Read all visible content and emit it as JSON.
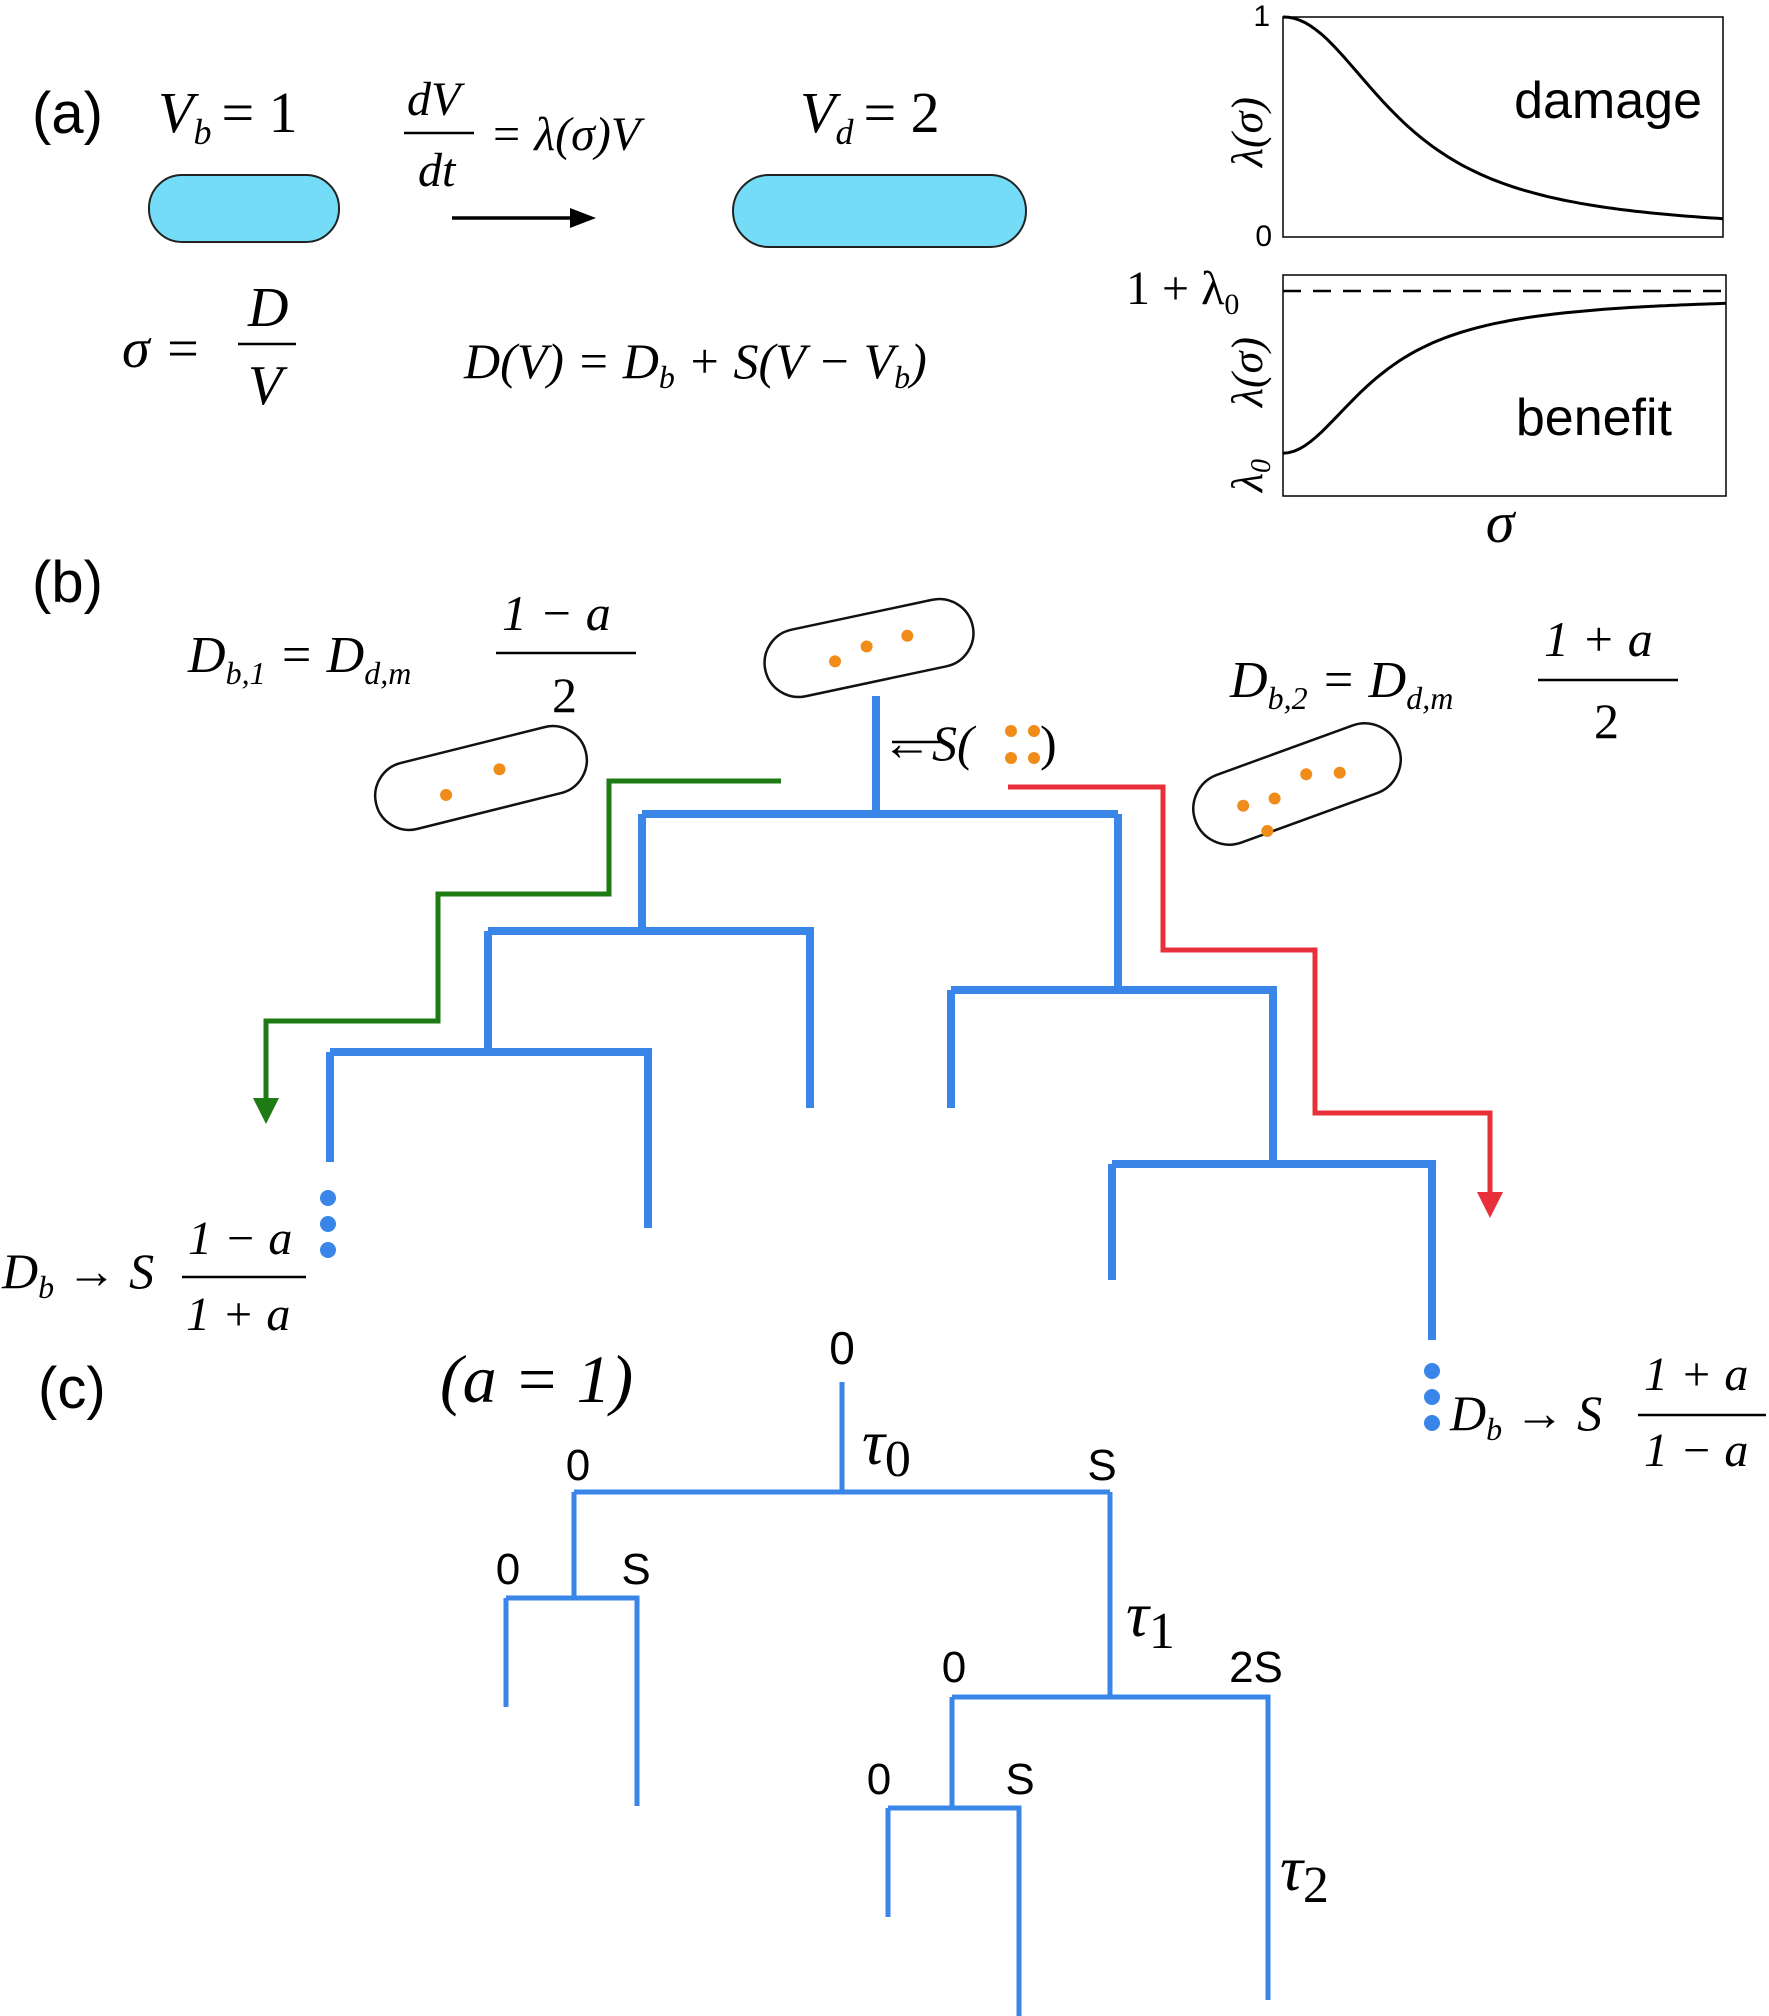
{
  "colors": {
    "tree": "#3a86e8",
    "green": "#1e7a12",
    "red": "#e8303a",
    "cell_fill": "#74dcf7",
    "dot": "#f08c1a"
  },
  "panel_a": {
    "label": "(a)",
    "vb_var": "V",
    "vb_sub": "b",
    "vb_rhs": "= 1",
    "vd_var": "V",
    "vd_sub": "d",
    "vd_rhs": "= 2",
    "rate_num": "dV",
    "rate_den": "dt",
    "rate_rhs": "= λ(σ)V",
    "sigma_lhs": "σ =",
    "sigma_num": "D",
    "sigma_den": "V",
    "dv_eq": "D(V) = D",
    "dv_sub": "b",
    "dv_rest": " + S(V − V",
    "dv_end": ")"
  },
  "damage_plot": {
    "ylabel": "λ(σ)",
    "ytick_top": "1",
    "ytick_bottom": "0",
    "label": "damage",
    "chart_data": {
      "type": "line",
      "title": "damage",
      "ylabel": "λ(σ)",
      "xlabel": "",
      "yticks": [
        "1",
        "0"
      ],
      "ylim": [
        0,
        1
      ],
      "curve": "decreasing sigmoid from 1 toward 0"
    }
  },
  "benefit_plot": {
    "ylabel": "λ(σ)",
    "ytick_top_main": "1 + λ",
    "ytick_top_sub": "0",
    "ytick_bottom_main": "λ",
    "ytick_bottom_sub": "0",
    "label": "benefit",
    "xlabel": "σ",
    "chart_data": {
      "type": "line",
      "title": "benefit",
      "ylabel": "λ(σ)",
      "xlabel": "σ",
      "yticks": [
        "λ0",
        "1 + λ0"
      ],
      "curve": "increasing sigmoid from λ0 toward asymptote 1 + λ0 (dashed)"
    }
  },
  "panel_b": {
    "label": "(b)",
    "db1_lhs": "D",
    "db1_sub": "b,1",
    "db1_mid": " = D",
    "db1_sub2": "d,m",
    "db1_num": "1 − a",
    "db1_den": "2",
    "db2_lhs": "D",
    "db2_sub": "b,2",
    "db2_mid": " = D",
    "db2_sub2": "d,m",
    "db2_num": "1 + a",
    "db2_den": "2",
    "s_label": "←S(",
    "s_close": ")",
    "limit_left_lhs": "D",
    "limit_left_sub": "b",
    "limit_left_arrow": " → S",
    "limit_left_num": "1 − a",
    "limit_left_den": "1 + a",
    "limit_right_lhs": "D",
    "limit_right_sub": "b",
    "limit_right_arrow": " → S",
    "limit_right_num": "1 + a",
    "limit_right_den": "1 − a"
  },
  "panel_c": {
    "label": "(c)",
    "a_eq": "(a = 1)",
    "root_label": "0",
    "tau0": "τ",
    "tau0_sub": "0",
    "tau1": "τ",
    "tau1_sub": "1",
    "tau2": "τ",
    "tau2_sub": "2",
    "l1_left": "0",
    "l1_right": "S",
    "l2a_left": "0",
    "l2a_right": "S",
    "l2b_left": "0",
    "l2b_right": "2S",
    "l3_left": "0",
    "l3_right": "S"
  }
}
